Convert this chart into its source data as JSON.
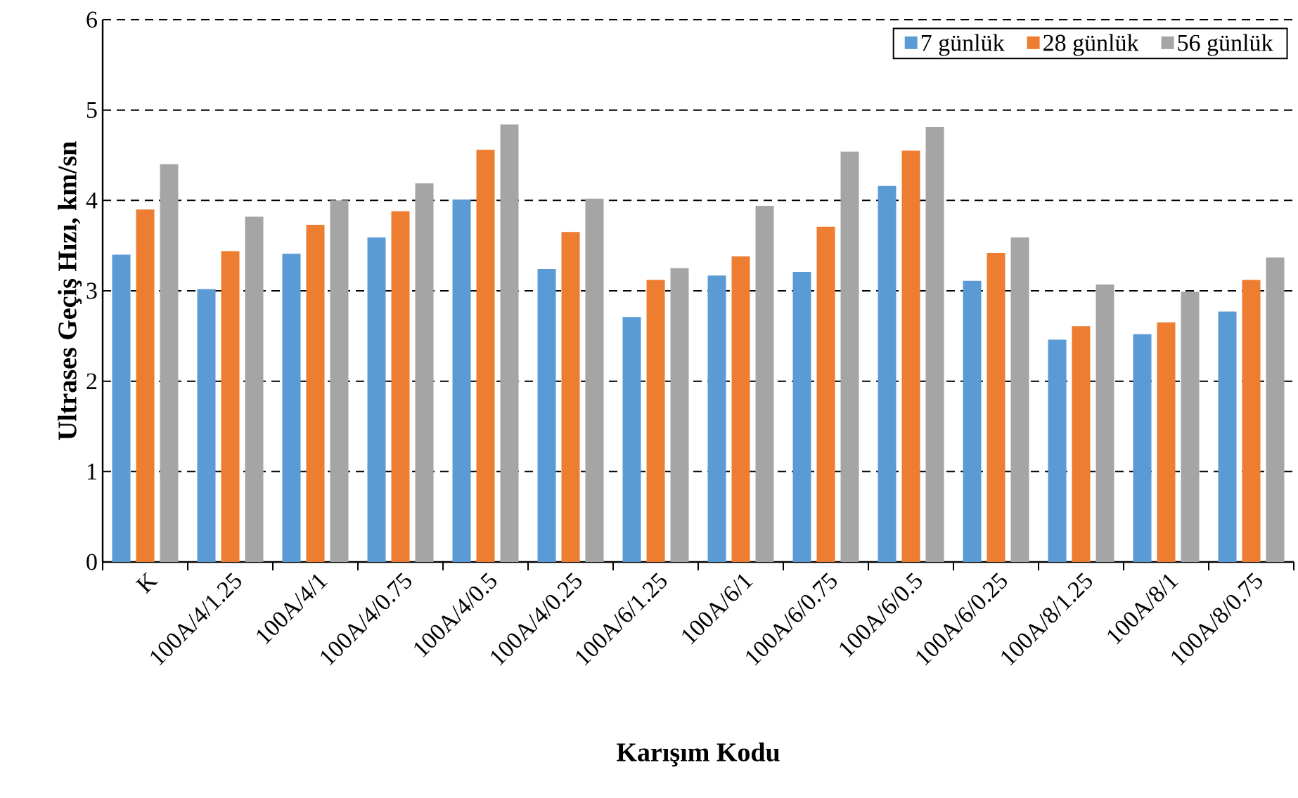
{
  "chart_data": {
    "type": "bar",
    "xlabel": "Karışım Kodu",
    "ylabel": "Ultrases Geçiş Hızı, km/sn",
    "categories": [
      "K",
      "100A/4/1.25",
      "100A/4/1",
      "100A/4/0.75",
      "100A/4/0.5",
      "100A/4/0.25",
      "100A/6/1.25",
      "100A/6/1",
      "100A/6/0.75",
      "100A/6/0.5",
      "100A/6/0.25",
      "100A/8/1.25",
      "100A/8/1",
      "100A/8/0.75"
    ],
    "series": [
      {
        "name": "7 günlük",
        "color": "#5b9bd5",
        "values": [
          3.4,
          3.02,
          3.41,
          3.59,
          4.01,
          3.24,
          2.71,
          3.17,
          3.21,
          4.16,
          3.11,
          2.46,
          2.52,
          2.77
        ]
      },
      {
        "name": "28 günlük",
        "color": "#ed7d31",
        "values": [
          3.9,
          3.44,
          3.73,
          3.88,
          4.56,
          3.65,
          3.12,
          3.38,
          3.71,
          4.55,
          3.42,
          2.61,
          2.65,
          3.12
        ]
      },
      {
        "name": "56 günlük",
        "color": "#a5a5a5",
        "values": [
          4.4,
          3.82,
          4.0,
          4.19,
          4.84,
          4.02,
          3.25,
          3.94,
          4.54,
          4.81,
          3.59,
          3.07,
          2.99,
          3.37
        ]
      }
    ],
    "ylim": [
      0,
      6
    ],
    "yticks": [
      0,
      1,
      2,
      3,
      4,
      5,
      6
    ],
    "grid": "y",
    "legend": "top right"
  }
}
